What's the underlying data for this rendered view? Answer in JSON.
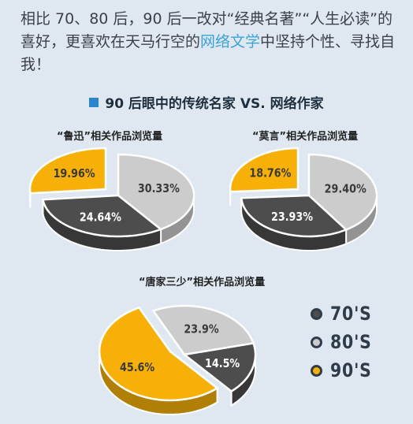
{
  "intro": {
    "part1": "相比 70、80 后，90 后一改对“经典名著”“人生必读”的喜好，更喜欢在天马行空的",
    "highlight": "网络文学",
    "part2": "中坚持个性、寻找自我！"
  },
  "heading": "90 后眼中的传统名家 VS. 网络作家",
  "colors": {
    "s70": "#4d4d4d",
    "s80": "#cccccc",
    "s90": "#f7b008"
  },
  "legend": [
    {
      "label": "70'S",
      "color": "#4d4d4d"
    },
    {
      "label": "80'S",
      "color": "#cccccc"
    },
    {
      "label": "90'S",
      "color": "#f7b008"
    }
  ],
  "chart_data": [
    {
      "type": "pie",
      "title": "“鲁迅”相关作品浏览量",
      "categories": [
        "70'S",
        "80'S",
        "90'S"
      ],
      "values": [
        24.64,
        30.33,
        19.96
      ],
      "labels": [
        "24.64%",
        "30.33%",
        "19.96%"
      ]
    },
    {
      "type": "pie",
      "title": "“莫言”相关作品浏览量",
      "categories": [
        "70'S",
        "80'S",
        "90'S"
      ],
      "values": [
        23.93,
        29.4,
        18.76
      ],
      "labels": [
        "23.93%",
        "29.40%",
        "18.76%"
      ]
    },
    {
      "type": "pie",
      "title": "“唐家三少”相关作品浏览量",
      "categories": [
        "70'S",
        "80'S",
        "90'S"
      ],
      "values": [
        14.5,
        23.9,
        45.6
      ],
      "labels": [
        "14.5%",
        "23.9%",
        "45.6%"
      ]
    }
  ]
}
